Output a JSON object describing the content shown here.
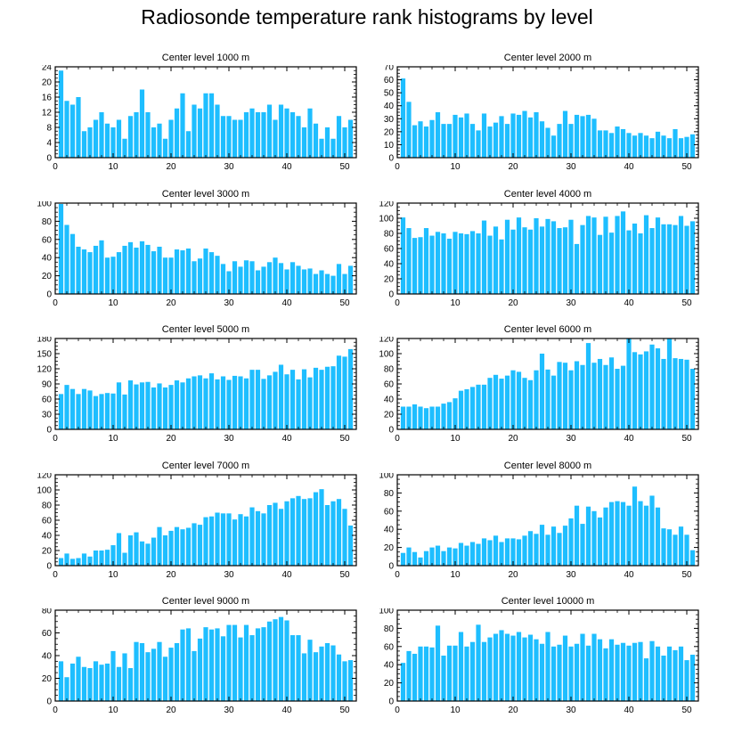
{
  "title": "Radiosonde temperature rank histograms by level",
  "bar_color": "#1ebeff",
  "chart_data": [
    {
      "type": "bar",
      "title": "Center level 1000 m",
      "xlabel": "",
      "ylabel": "",
      "xlim": [
        0,
        52
      ],
      "ylim": [
        0,
        24
      ],
      "yticks": [
        0,
        4,
        8,
        12,
        16,
        20,
        24
      ],
      "xticks": [
        0,
        10,
        20,
        30,
        40,
        50
      ],
      "categories": [
        1,
        2,
        3,
        4,
        5,
        6,
        7,
        8,
        9,
        10,
        11,
        12,
        13,
        14,
        15,
        16,
        17,
        18,
        19,
        20,
        21,
        22,
        23,
        24,
        25,
        26,
        27,
        28,
        29,
        30,
        31,
        32,
        33,
        34,
        35,
        36,
        37,
        38,
        39,
        40,
        41,
        42,
        43,
        44,
        45,
        46,
        47,
        48,
        49,
        50,
        51
      ],
      "values": [
        23,
        15,
        14,
        16,
        7,
        8,
        10,
        12,
        9,
        8,
        10,
        5,
        11,
        12,
        18,
        12,
        8,
        9,
        5,
        10,
        13,
        17,
        7,
        14,
        13,
        17,
        17,
        14,
        11,
        11,
        10,
        10,
        12,
        13,
        12,
        12,
        14,
        10,
        14,
        13,
        12,
        11,
        8,
        13,
        9,
        5,
        8,
        5,
        11,
        8,
        10
      ]
    },
    {
      "type": "bar",
      "title": "Center level 2000 m",
      "xlabel": "",
      "ylabel": "",
      "xlim": [
        0,
        52
      ],
      "ylim": [
        0,
        70
      ],
      "yticks": [
        0,
        10,
        20,
        30,
        40,
        50,
        60,
        70
      ],
      "xticks": [
        0,
        10,
        20,
        30,
        40,
        50
      ],
      "categories": [
        1,
        2,
        3,
        4,
        5,
        6,
        7,
        8,
        9,
        10,
        11,
        12,
        13,
        14,
        15,
        16,
        17,
        18,
        19,
        20,
        21,
        22,
        23,
        24,
        25,
        26,
        27,
        28,
        29,
        30,
        31,
        32,
        33,
        34,
        35,
        36,
        37,
        38,
        39,
        40,
        41,
        42,
        43,
        44,
        45,
        46,
        47,
        48,
        49,
        50,
        51
      ],
      "values": [
        61,
        43,
        25,
        28,
        24,
        29,
        35,
        26,
        26,
        33,
        31,
        34,
        26,
        21,
        34,
        24,
        27,
        32,
        26,
        34,
        33,
        36,
        31,
        35,
        28,
        23,
        17,
        26,
        36,
        26,
        33,
        32,
        33,
        30,
        21,
        21,
        19,
        24,
        22,
        19,
        17,
        19,
        17,
        15,
        20,
        17,
        15,
        22,
        15,
        16,
        18
      ]
    },
    {
      "type": "bar",
      "title": "Center level 3000 m",
      "xlabel": "",
      "ylabel": "",
      "xlim": [
        0,
        52
      ],
      "ylim": [
        0,
        100
      ],
      "yticks": [
        0,
        20,
        40,
        60,
        80,
        100
      ],
      "xticks": [
        0,
        10,
        20,
        30,
        40,
        50
      ],
      "categories": [
        1,
        2,
        3,
        4,
        5,
        6,
        7,
        8,
        9,
        10,
        11,
        12,
        13,
        14,
        15,
        16,
        17,
        18,
        19,
        20,
        21,
        22,
        23,
        24,
        25,
        26,
        27,
        28,
        29,
        30,
        31,
        32,
        33,
        34,
        35,
        36,
        37,
        38,
        39,
        40,
        41,
        42,
        43,
        44,
        45,
        46,
        47,
        48,
        49,
        50,
        51
      ],
      "values": [
        99,
        76,
        66,
        52,
        49,
        46,
        53,
        59,
        40,
        41,
        46,
        53,
        57,
        51,
        58,
        54,
        47,
        52,
        40,
        40,
        49,
        48,
        50,
        36,
        39,
        50,
        46,
        42,
        33,
        25,
        36,
        30,
        37,
        36,
        26,
        30,
        35,
        40,
        34,
        27,
        35,
        31,
        27,
        28,
        22,
        26,
        22,
        20,
        33,
        22,
        31
      ]
    },
    {
      "type": "bar",
      "title": "Center level 4000 m",
      "xlabel": "",
      "ylabel": "",
      "xlim": [
        0,
        52
      ],
      "ylim": [
        0,
        120
      ],
      "yticks": [
        0,
        20,
        40,
        60,
        80,
        100,
        120
      ],
      "xticks": [
        0,
        10,
        20,
        30,
        40,
        50
      ],
      "categories": [
        1,
        2,
        3,
        4,
        5,
        6,
        7,
        8,
        9,
        10,
        11,
        12,
        13,
        14,
        15,
        16,
        17,
        18,
        19,
        20,
        21,
        22,
        23,
        24,
        25,
        26,
        27,
        28,
        29,
        30,
        31,
        32,
        33,
        34,
        35,
        36,
        37,
        38,
        39,
        40,
        41,
        42,
        43,
        44,
        45,
        46,
        47,
        48,
        49,
        50,
        51
      ],
      "values": [
        101,
        87,
        74,
        75,
        87,
        77,
        82,
        80,
        73,
        82,
        80,
        79,
        83,
        80,
        97,
        77,
        89,
        72,
        98,
        85,
        101,
        88,
        85,
        100,
        89,
        99,
        96,
        87,
        88,
        98,
        66,
        91,
        103,
        101,
        78,
        102,
        81,
        103,
        109,
        84,
        93,
        80,
        104,
        87,
        101,
        92,
        92,
        91,
        103,
        90,
        96
      ]
    },
    {
      "type": "bar",
      "title": "Center level 5000 m",
      "xlabel": "",
      "ylabel": "",
      "xlim": [
        0,
        52
      ],
      "ylim": [
        0,
        180
      ],
      "yticks": [
        0,
        30,
        60,
        90,
        120,
        150,
        180
      ],
      "xticks": [
        0,
        10,
        20,
        30,
        40,
        50
      ],
      "categories": [
        1,
        2,
        3,
        4,
        5,
        6,
        7,
        8,
        9,
        10,
        11,
        12,
        13,
        14,
        15,
        16,
        17,
        18,
        19,
        20,
        21,
        22,
        23,
        24,
        25,
        26,
        27,
        28,
        29,
        30,
        31,
        32,
        33,
        34,
        35,
        36,
        37,
        38,
        39,
        40,
        41,
        42,
        43,
        44,
        45,
        46,
        47,
        48,
        49,
        50,
        51
      ],
      "values": [
        70,
        88,
        80,
        70,
        80,
        77,
        66,
        70,
        72,
        71,
        93,
        69,
        97,
        89,
        93,
        94,
        83,
        91,
        83,
        88,
        97,
        93,
        101,
        105,
        107,
        101,
        111,
        99,
        105,
        98,
        106,
        105,
        101,
        118,
        118,
        100,
        107,
        114,
        128,
        109,
        118,
        99,
        119,
        103,
        122,
        118,
        124,
        125,
        146,
        144,
        159
      ]
    },
    {
      "type": "bar",
      "title": "Center level 6000 m",
      "xlabel": "",
      "ylabel": "",
      "xlim": [
        0,
        52
      ],
      "ylim": [
        0,
        120
      ],
      "yticks": [
        0,
        20,
        40,
        60,
        80,
        100,
        120
      ],
      "xticks": [
        0,
        10,
        20,
        30,
        40,
        50
      ],
      "categories": [
        1,
        2,
        3,
        4,
        5,
        6,
        7,
        8,
        9,
        10,
        11,
        12,
        13,
        14,
        15,
        16,
        17,
        18,
        19,
        20,
        21,
        22,
        23,
        24,
        25,
        26,
        27,
        28,
        29,
        30,
        31,
        32,
        33,
        34,
        35,
        36,
        37,
        38,
        39,
        40,
        41,
        42,
        43,
        44,
        45,
        46,
        47,
        48,
        49,
        50,
        51
      ],
      "values": [
        30,
        30,
        33,
        30,
        28,
        30,
        30,
        34,
        36,
        41,
        51,
        53,
        56,
        59,
        59,
        68,
        72,
        67,
        71,
        78,
        76,
        68,
        65,
        78,
        100,
        79,
        71,
        89,
        88,
        78,
        90,
        85,
        114,
        88,
        93,
        85,
        95,
        80,
        84,
        120,
        102,
        99,
        103,
        112,
        107,
        93,
        120,
        94,
        93,
        92,
        80
      ]
    },
    {
      "type": "bar",
      "title": "Center level 7000 m",
      "xlabel": "",
      "ylabel": "",
      "xlim": [
        0,
        52
      ],
      "ylim": [
        0,
        120
      ],
      "yticks": [
        0,
        20,
        40,
        60,
        80,
        100,
        120
      ],
      "xticks": [
        0,
        10,
        20,
        30,
        40,
        50
      ],
      "categories": [
        1,
        2,
        3,
        4,
        5,
        6,
        7,
        8,
        9,
        10,
        11,
        12,
        13,
        14,
        15,
        16,
        17,
        18,
        19,
        20,
        21,
        22,
        23,
        24,
        25,
        26,
        27,
        28,
        29,
        30,
        31,
        32,
        33,
        34,
        35,
        36,
        37,
        38,
        39,
        40,
        41,
        42,
        43,
        44,
        45,
        46,
        47,
        48,
        49,
        50,
        51
      ],
      "values": [
        10,
        16,
        9,
        10,
        16,
        12,
        20,
        20,
        21,
        27,
        43,
        17,
        40,
        44,
        32,
        29,
        37,
        51,
        40,
        46,
        51,
        48,
        50,
        56,
        54,
        64,
        65,
        70,
        69,
        69,
        61,
        68,
        65,
        77,
        72,
        69,
        80,
        83,
        75,
        85,
        89,
        92,
        88,
        89,
        97,
        101,
        80,
        85,
        88,
        75,
        53
      ]
    },
    {
      "type": "bar",
      "title": "Center level 8000 m",
      "xlabel": "",
      "ylabel": "",
      "xlim": [
        0,
        52
      ],
      "ylim": [
        0,
        100
      ],
      "yticks": [
        0,
        20,
        40,
        60,
        80,
        100
      ],
      "xticks": [
        0,
        10,
        20,
        30,
        40,
        50
      ],
      "categories": [
        1,
        2,
        3,
        4,
        5,
        6,
        7,
        8,
        9,
        10,
        11,
        12,
        13,
        14,
        15,
        16,
        17,
        18,
        19,
        20,
        21,
        22,
        23,
        24,
        25,
        26,
        27,
        28,
        29,
        30,
        31,
        32,
        33,
        34,
        35,
        36,
        37,
        38,
        39,
        40,
        41,
        42,
        43,
        44,
        45,
        46,
        47,
        48,
        49,
        50,
        51
      ],
      "values": [
        14,
        20,
        15,
        9,
        16,
        20,
        22,
        16,
        20,
        19,
        25,
        22,
        26,
        24,
        30,
        28,
        33,
        26,
        30,
        30,
        29,
        33,
        38,
        35,
        45,
        34,
        43,
        36,
        44,
        52,
        66,
        46,
        65,
        60,
        53,
        64,
        70,
        71,
        70,
        66,
        87,
        71,
        66,
        77,
        64,
        41,
        40,
        34,
        43,
        34,
        17
      ]
    },
    {
      "type": "bar",
      "title": "Center level 9000 m",
      "xlabel": "",
      "ylabel": "",
      "xlim": [
        0,
        52
      ],
      "ylim": [
        0,
        80
      ],
      "yticks": [
        0,
        20,
        40,
        60,
        80
      ],
      "xticks": [
        0,
        10,
        20,
        30,
        40,
        50
      ],
      "categories": [
        1,
        2,
        3,
        4,
        5,
        6,
        7,
        8,
        9,
        10,
        11,
        12,
        13,
        14,
        15,
        16,
        17,
        18,
        19,
        20,
        21,
        22,
        23,
        24,
        25,
        26,
        27,
        28,
        29,
        30,
        31,
        32,
        33,
        34,
        35,
        36,
        37,
        38,
        39,
        40,
        41,
        42,
        43,
        44,
        45,
        46,
        47,
        48,
        49,
        50,
        51
      ],
      "values": [
        35,
        21,
        33,
        39,
        30,
        29,
        35,
        32,
        33,
        44,
        30,
        42,
        29,
        52,
        51,
        43,
        46,
        52,
        39,
        47,
        51,
        63,
        64,
        44,
        55,
        65,
        63,
        64,
        57,
        67,
        67,
        56,
        67,
        58,
        64,
        65,
        70,
        72,
        74,
        71,
        58,
        58,
        42,
        54,
        43,
        48,
        51,
        49,
        41,
        35,
        36
      ]
    },
    {
      "type": "bar",
      "title": "Center level 10000 m",
      "xlabel": "",
      "ylabel": "",
      "xlim": [
        0,
        52
      ],
      "ylim": [
        0,
        100
      ],
      "yticks": [
        0,
        20,
        40,
        60,
        80,
        100
      ],
      "xticks": [
        0,
        10,
        20,
        30,
        40,
        50
      ],
      "categories": [
        1,
        2,
        3,
        4,
        5,
        6,
        7,
        8,
        9,
        10,
        11,
        12,
        13,
        14,
        15,
        16,
        17,
        18,
        19,
        20,
        21,
        22,
        23,
        24,
        25,
        26,
        27,
        28,
        29,
        30,
        31,
        32,
        33,
        34,
        35,
        36,
        37,
        38,
        39,
        40,
        41,
        42,
        43,
        44,
        45,
        46,
        47,
        48,
        49,
        50,
        51
      ],
      "values": [
        42,
        55,
        52,
        60,
        60,
        59,
        83,
        50,
        61,
        61,
        76,
        60,
        65,
        84,
        65,
        70,
        74,
        78,
        74,
        72,
        76,
        70,
        73,
        68,
        63,
        76,
        60,
        62,
        72,
        60,
        63,
        74,
        61,
        74,
        68,
        58,
        68,
        62,
        64,
        61,
        64,
        65,
        47,
        66,
        60,
        50,
        60,
        56,
        60,
        45,
        51
      ]
    }
  ]
}
